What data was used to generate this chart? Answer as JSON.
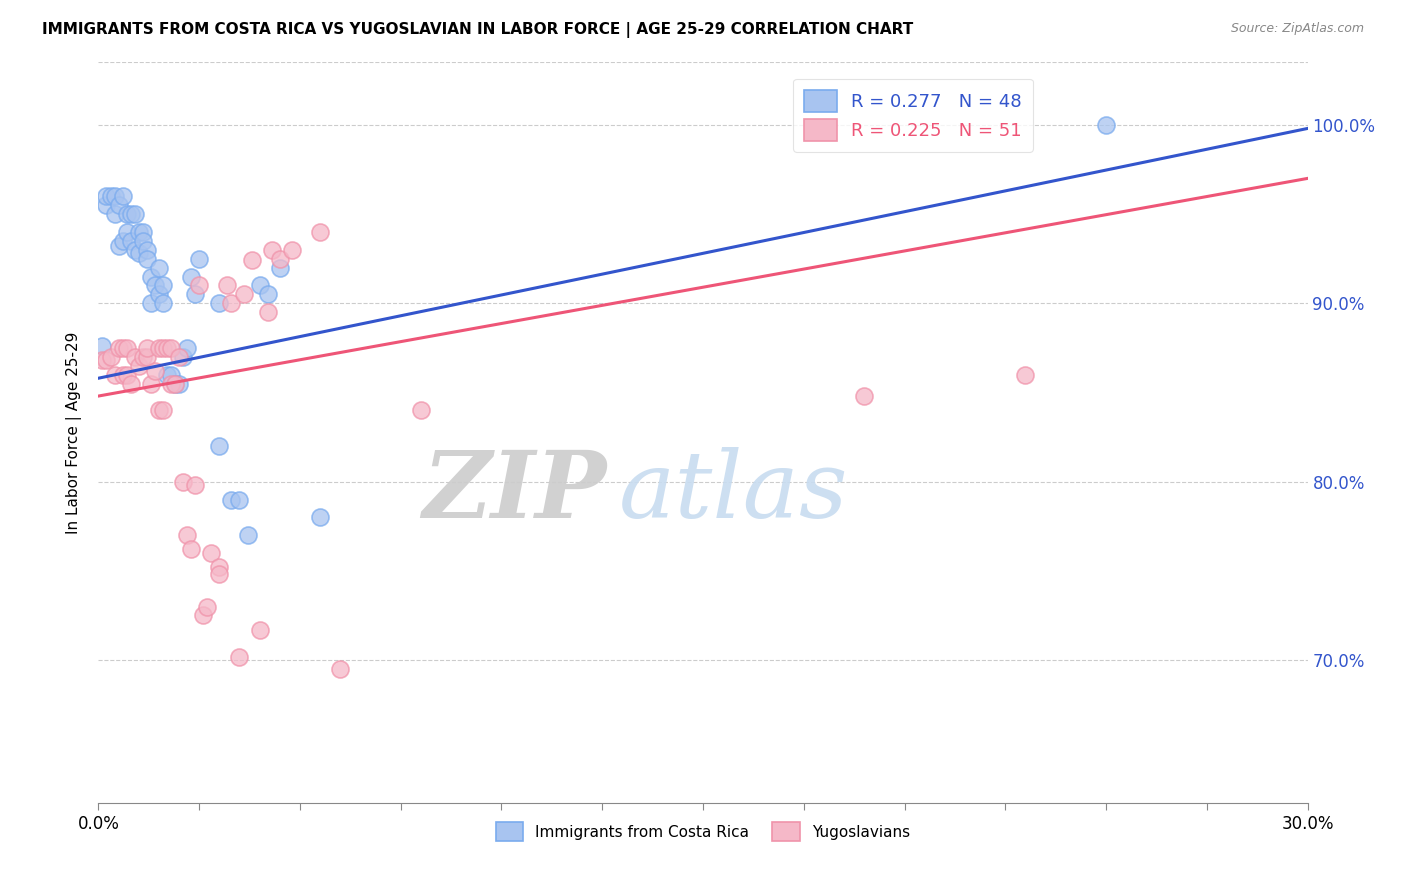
{
  "title": "IMMIGRANTS FROM COSTA RICA VS YUGOSLAVIAN IN LABOR FORCE | AGE 25-29 CORRELATION CHART",
  "source": "Source: ZipAtlas.com",
  "ylabel_label": "In Labor Force | Age 25-29",
  "xmin": 0.0,
  "xmax": 0.3,
  "ymin": 0.62,
  "ymax": 1.035,
  "yticks": [
    0.7,
    0.8,
    0.9,
    1.0
  ],
  "ytick_labels": [
    "70.0%",
    "80.0%",
    "90.0%",
    "100.0%"
  ],
  "watermark_zip": "ZIP",
  "watermark_atlas": "atlas",
  "legend_entry1": "R = 0.277   N = 48",
  "legend_entry2": "R = 0.225   N = 51",
  "blue_fill": "#a8c4f0",
  "pink_fill": "#f5b8c8",
  "blue_edge": "#7aabee",
  "pink_edge": "#f093aa",
  "line_blue": "#3355cc",
  "line_pink": "#ee5577",
  "costa_rica_x": [
    0.001,
    0.002,
    0.002,
    0.003,
    0.004,
    0.004,
    0.005,
    0.005,
    0.006,
    0.006,
    0.007,
    0.007,
    0.008,
    0.008,
    0.009,
    0.009,
    0.01,
    0.01,
    0.011,
    0.011,
    0.012,
    0.012,
    0.013,
    0.013,
    0.014,
    0.015,
    0.015,
    0.016,
    0.016,
    0.017,
    0.018,
    0.019,
    0.02,
    0.021,
    0.022,
    0.023,
    0.024,
    0.025,
    0.03,
    0.03,
    0.033,
    0.035,
    0.037,
    0.04,
    0.042,
    0.045,
    0.055,
    0.25
  ],
  "costa_rica_y": [
    0.876,
    0.955,
    0.96,
    0.96,
    0.95,
    0.96,
    0.932,
    0.955,
    0.935,
    0.96,
    0.95,
    0.94,
    0.935,
    0.95,
    0.93,
    0.95,
    0.94,
    0.928,
    0.94,
    0.935,
    0.93,
    0.925,
    0.915,
    0.9,
    0.91,
    0.905,
    0.92,
    0.9,
    0.91,
    0.86,
    0.86,
    0.855,
    0.855,
    0.87,
    0.875,
    0.915,
    0.905,
    0.925,
    0.82,
    0.9,
    0.79,
    0.79,
    0.77,
    0.91,
    0.905,
    0.92,
    0.78,
    1.0
  ],
  "yugoslavian_x": [
    0.001,
    0.002,
    0.003,
    0.004,
    0.005,
    0.006,
    0.006,
    0.007,
    0.007,
    0.008,
    0.009,
    0.01,
    0.011,
    0.012,
    0.012,
    0.013,
    0.014,
    0.015,
    0.015,
    0.016,
    0.016,
    0.017,
    0.018,
    0.018,
    0.019,
    0.02,
    0.021,
    0.022,
    0.023,
    0.024,
    0.025,
    0.026,
    0.027,
    0.028,
    0.03,
    0.03,
    0.032,
    0.033,
    0.035,
    0.036,
    0.038,
    0.04,
    0.042,
    0.043,
    0.045,
    0.048,
    0.055,
    0.06,
    0.08,
    0.19,
    0.23
  ],
  "yugoslavian_y": [
    0.868,
    0.868,
    0.87,
    0.86,
    0.875,
    0.86,
    0.875,
    0.86,
    0.875,
    0.855,
    0.87,
    0.865,
    0.87,
    0.87,
    0.875,
    0.855,
    0.862,
    0.875,
    0.84,
    0.84,
    0.875,
    0.875,
    0.855,
    0.875,
    0.855,
    0.87,
    0.8,
    0.77,
    0.762,
    0.798,
    0.91,
    0.725,
    0.73,
    0.76,
    0.752,
    0.748,
    0.91,
    0.9,
    0.702,
    0.905,
    0.924,
    0.717,
    0.895,
    0.93,
    0.925,
    0.93,
    0.94,
    0.695,
    0.84,
    0.848,
    0.86
  ],
  "blue_line_x": [
    0.0,
    0.3
  ],
  "blue_line_y": [
    0.858,
    0.998
  ],
  "pink_line_x": [
    0.0,
    0.3
  ],
  "pink_line_y": [
    0.848,
    0.97
  ],
  "xtick_positions": [
    0.0,
    0.025,
    0.05,
    0.075,
    0.1,
    0.125,
    0.15,
    0.175,
    0.2,
    0.225,
    0.25,
    0.275,
    0.3
  ]
}
